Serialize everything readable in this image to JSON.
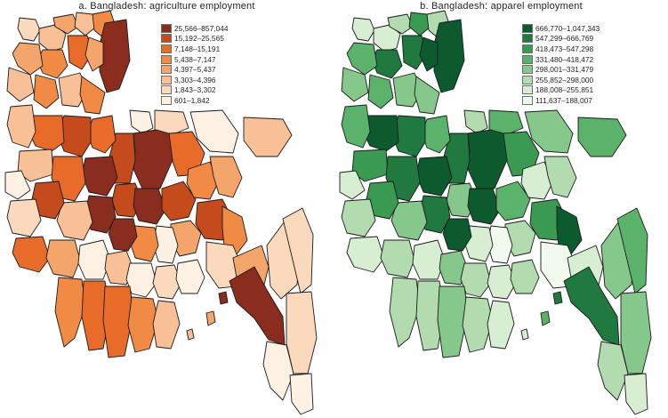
{
  "panels": [
    {
      "title": "a. Bangladesh: agriculture employment",
      "legend": [
        {
          "label": "25,566–857,044",
          "color": "#8a2d1f"
        },
        {
          "label": "15,192–25,565",
          "color": "#c54a1c"
        },
        {
          "label": "7,148–15,191",
          "color": "#e86b2a"
        },
        {
          "label": "5,438–7,147",
          "color": "#f08a45"
        },
        {
          "label": "4,397–5,437",
          "color": "#f4a56b"
        },
        {
          "label": "3,303–4,396",
          "color": "#f8c096"
        },
        {
          "label": "1,843–3,302",
          "color": "#fbd9bd"
        },
        {
          "label": "601–1,842",
          "color": "#fdf1e4"
        }
      ]
    },
    {
      "title": "b. Bangladesh: apparel employment",
      "legend": [
        {
          "label": "666,770–1,047,343",
          "color": "#0d5a2f"
        },
        {
          "label": "547,299–666,769",
          "color": "#20793f"
        },
        {
          "label": "418,473–547,298",
          "color": "#3a9a52"
        },
        {
          "label": "331,480–418,472",
          "color": "#5bb26a"
        },
        {
          "label": "298,001–331,479",
          "color": "#86c78b"
        },
        {
          "label": "255,852–298,000",
          "color": "#b2dbb0"
        },
        {
          "label": "188,008–255,851",
          "color": "#d8eed3"
        },
        {
          "label": "111,637–188,007",
          "color": "#f2f9ee"
        }
      ]
    }
  ]
}
